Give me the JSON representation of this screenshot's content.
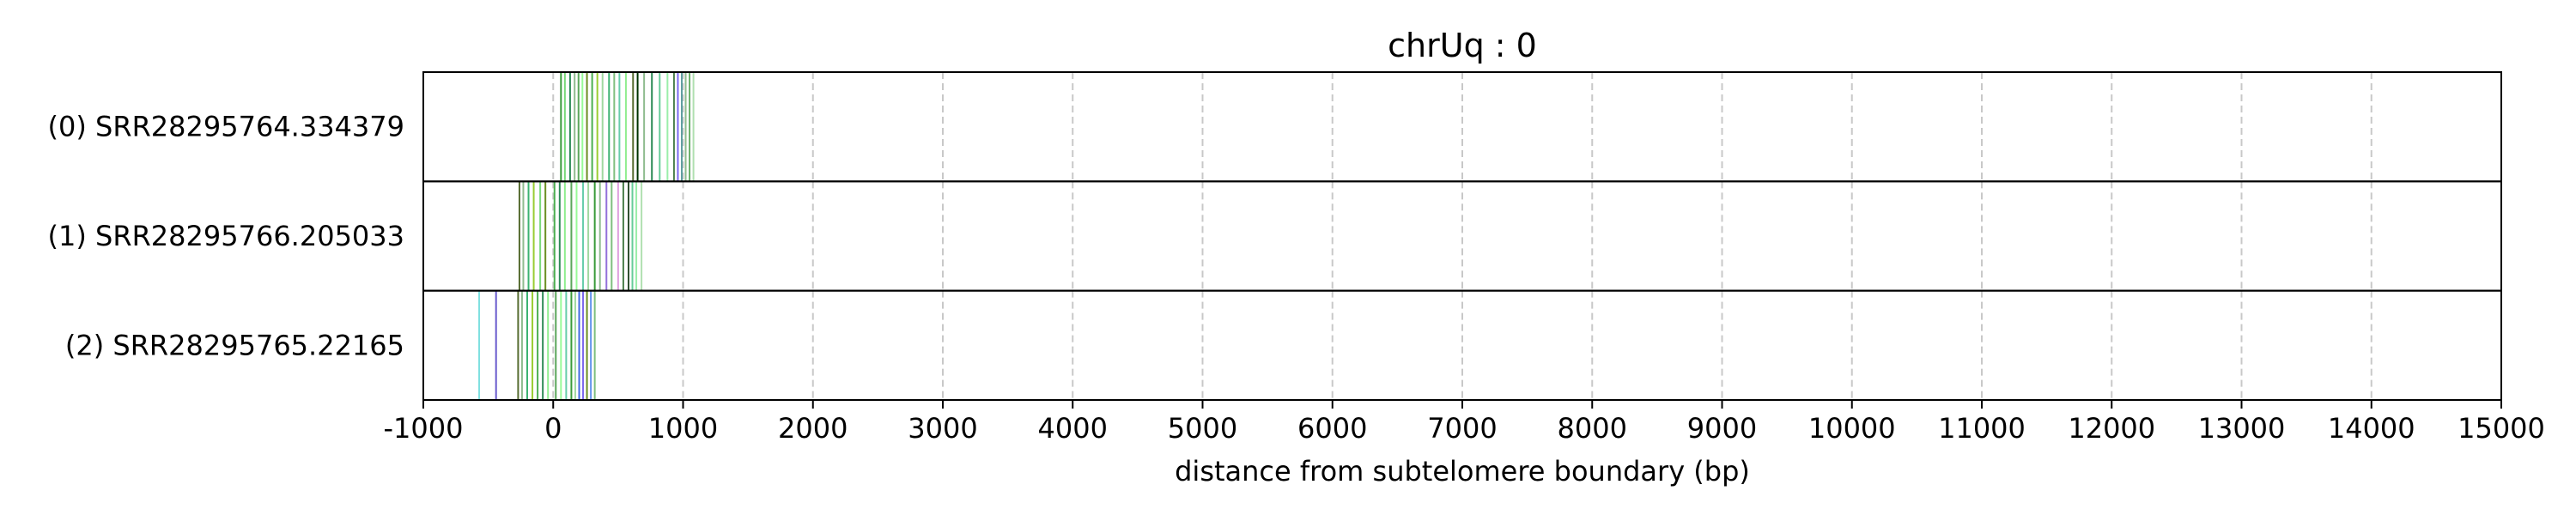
{
  "chart_data": {
    "type": "strip",
    "title": "chrUq : 0",
    "xlabel": "distance from subtelomere boundary (bp)",
    "ylabel": "",
    "xlim": [
      -1000,
      15000
    ],
    "xticks": [
      -1000,
      0,
      1000,
      2000,
      3000,
      4000,
      5000,
      6000,
      7000,
      8000,
      9000,
      10000,
      11000,
      12000,
      13000,
      14000,
      15000
    ],
    "grid": true,
    "rows": [
      {
        "label": "(0) SRR28295764.334379",
        "marks": [
          {
            "x": 60,
            "color": "#3a9a3a"
          },
          {
            "x": 90,
            "color": "#7ad97a"
          },
          {
            "x": 130,
            "color": "#2e8b57"
          },
          {
            "x": 165,
            "color": "#8fbc8f"
          },
          {
            "x": 195,
            "color": "#5aa65a"
          },
          {
            "x": 225,
            "color": "#98fb98"
          },
          {
            "x": 260,
            "color": "#6b8e23"
          },
          {
            "x": 300,
            "color": "#4caf50"
          },
          {
            "x": 340,
            "color": "#9acd32"
          },
          {
            "x": 380,
            "color": "#a0d8a0"
          },
          {
            "x": 430,
            "color": "#3cb371"
          },
          {
            "x": 470,
            "color": "#7fbf7f"
          },
          {
            "x": 510,
            "color": "#66cdaa"
          },
          {
            "x": 560,
            "color": "#90ee90"
          },
          {
            "x": 615,
            "color": "#556b2f"
          },
          {
            "x": 650,
            "color": "#003300"
          },
          {
            "x": 700,
            "color": "#8fbc8f"
          },
          {
            "x": 760,
            "color": "#2e8b57"
          },
          {
            "x": 820,
            "color": "#66cc99"
          },
          {
            "x": 880,
            "color": "#9aeeaa"
          },
          {
            "x": 930,
            "color": "#4a7f4a"
          },
          {
            "x": 960,
            "color": "#7b68ee"
          },
          {
            "x": 990,
            "color": "#5f9ea0"
          },
          {
            "x": 1020,
            "color": "#8fbc8f"
          },
          {
            "x": 1050,
            "color": "#6ab06a"
          },
          {
            "x": 1080,
            "color": "#b0e0b0"
          }
        ]
      },
      {
        "label": "(1) SRR28295766.205033",
        "marks": [
          {
            "x": -260,
            "color": "#556b2f"
          },
          {
            "x": -230,
            "color": "#8fbc8f"
          },
          {
            "x": -190,
            "color": "#3cb371"
          },
          {
            "x": -150,
            "color": "#9acd32"
          },
          {
            "x": -100,
            "color": "#7ad97a"
          },
          {
            "x": -60,
            "color": "#6b8e23"
          },
          {
            "x": 10,
            "color": "#4caf50"
          },
          {
            "x": 50,
            "color": "#2e8b57"
          },
          {
            "x": 90,
            "color": "#90ee90"
          },
          {
            "x": 140,
            "color": "#5aa65a"
          },
          {
            "x": 180,
            "color": "#98fb98"
          },
          {
            "x": 230,
            "color": "#66cdaa"
          },
          {
            "x": 270,
            "color": "#a0d8a0"
          },
          {
            "x": 320,
            "color": "#3a9a3a"
          },
          {
            "x": 360,
            "color": "#8fbc8f"
          },
          {
            "x": 410,
            "color": "#9370db"
          },
          {
            "x": 450,
            "color": "#7fbf7f"
          },
          {
            "x": 500,
            "color": "#e0a0e0"
          },
          {
            "x": 540,
            "color": "#4a7f4a"
          },
          {
            "x": 580,
            "color": "#2f4f2f"
          },
          {
            "x": 610,
            "color": "#66cc99"
          },
          {
            "x": 640,
            "color": "#9aeeaa"
          },
          {
            "x": 680,
            "color": "#b0e0b0"
          }
        ]
      },
      {
        "label": "(2) SRR28295765.22165",
        "marks": [
          {
            "x": -570,
            "color": "#7fe0e0"
          },
          {
            "x": -440,
            "color": "#6a5acd"
          },
          {
            "x": -270,
            "color": "#556b2f"
          },
          {
            "x": -240,
            "color": "#8fbc8f"
          },
          {
            "x": -200,
            "color": "#3cb371"
          },
          {
            "x": -160,
            "color": "#9acd32"
          },
          {
            "x": -120,
            "color": "#4caf50"
          },
          {
            "x": -80,
            "color": "#2e8b57"
          },
          {
            "x": -40,
            "color": "#90ee90"
          },
          {
            "x": 20,
            "color": "#5aa65a"
          },
          {
            "x": 60,
            "color": "#98fb98"
          },
          {
            "x": 100,
            "color": "#66cdaa"
          },
          {
            "x": 140,
            "color": "#3a9a3a"
          },
          {
            "x": 170,
            "color": "#a0d8a0"
          },
          {
            "x": 200,
            "color": "#4169e1"
          },
          {
            "x": 230,
            "color": "#7b68ee"
          },
          {
            "x": 260,
            "color": "#6b8e23"
          },
          {
            "x": 290,
            "color": "#6495ed"
          },
          {
            "x": 320,
            "color": "#7fbf7f"
          }
        ]
      }
    ]
  }
}
